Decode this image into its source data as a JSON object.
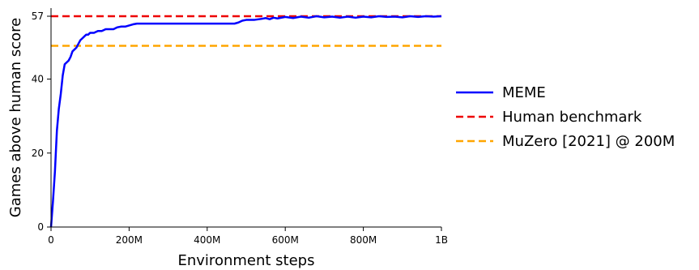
{
  "chart_data": {
    "type": "line",
    "title": "",
    "xlabel": "Environment steps",
    "ylabel": "Games above human score",
    "xlim": [
      0,
      1000000000
    ],
    "ylim": [
      0,
      57
    ],
    "x_ticks": [
      {
        "value": 0,
        "label": "0"
      },
      {
        "value": 200000000,
        "label": "200M"
      },
      {
        "value": 400000000,
        "label": "400M"
      },
      {
        "value": 600000000,
        "label": "600M"
      },
      {
        "value": 800000000,
        "label": "800M"
      },
      {
        "value": 1000000000,
        "label": "1B"
      }
    ],
    "y_ticks": [
      {
        "value": 0,
        "label": "0"
      },
      {
        "value": 20,
        "label": "20"
      },
      {
        "value": 40,
        "label": "40"
      },
      {
        "value": 57,
        "label": "57"
      }
    ],
    "grid": false,
    "legend_position": "right",
    "series": [
      {
        "name": "MEME",
        "color": "#0000ff",
        "style": "solid",
        "x": [
          0,
          5000000,
          10000000,
          15000000,
          20000000,
          25000000,
          30000000,
          35000000,
          40000000,
          45000000,
          50000000,
          55000000,
          60000000,
          65000000,
          70000000,
          75000000,
          80000000,
          85000000,
          90000000,
          95000000,
          100000000,
          110000000,
          120000000,
          130000000,
          140000000,
          150000000,
          160000000,
          170000000,
          180000000,
          190000000,
          200000000,
          210000000,
          220000000,
          240000000,
          300000000,
          400000000,
          470000000,
          480000000,
          490000000,
          500000000,
          520000000,
          540000000,
          550000000,
          560000000,
          570000000,
          580000000,
          600000000,
          620000000,
          640000000,
          660000000,
          680000000,
          700000000,
          720000000,
          740000000,
          760000000,
          780000000,
          800000000,
          820000000,
          840000000,
          860000000,
          880000000,
          900000000,
          920000000,
          940000000,
          960000000,
          980000000,
          1000000000
        ],
        "y": [
          0,
          7,
          15,
          26,
          32,
          36,
          41,
          44,
          44.5,
          45,
          46,
          47.5,
          48,
          48.5,
          49.5,
          50.5,
          51,
          51.5,
          52,
          52,
          52.5,
          52.5,
          53,
          53,
          53.5,
          53.5,
          53.5,
          54,
          54.2,
          54.2,
          54.5,
          54.8,
          55,
          55,
          55,
          55,
          55,
          55.3,
          55.8,
          56,
          56,
          56.3,
          56.5,
          56.2,
          56.6,
          56.4,
          56.8,
          56.5,
          56.9,
          56.6,
          57,
          56.7,
          56.9,
          56.6,
          56.9,
          56.6,
          56.9,
          56.7,
          57,
          56.8,
          56.9,
          56.7,
          57,
          56.8,
          57,
          56.9,
          57
        ]
      },
      {
        "name": "Human benchmark",
        "color": "#ee0000",
        "style": "dashed",
        "x": [
          0,
          1000000000
        ],
        "y": [
          57,
          57
        ]
      },
      {
        "name": "MuZero [2021] @ 200M",
        "color": "#ffa500",
        "style": "dashed",
        "x": [
          0,
          1000000000
        ],
        "y": [
          49,
          49
        ]
      }
    ]
  }
}
